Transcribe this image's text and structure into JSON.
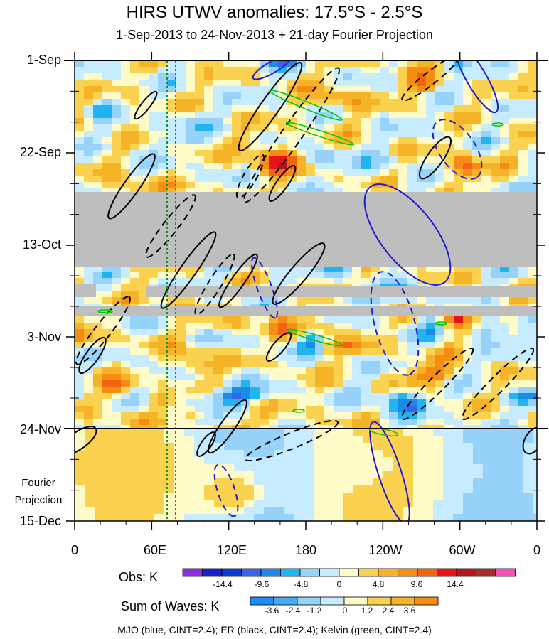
{
  "chart_data": {
    "type": "heatmap",
    "title": "HIRS UTWV anomalies: 17.5°S - 2.5°S",
    "subtitle": "1-Sep-2013 to 24-Nov-2013 + 21-day Fourier Projection",
    "y_ticks": [
      "1-Sep",
      "22-Sep",
      "13-Oct",
      "3-Nov",
      "24-Nov",
      "15-Dec"
    ],
    "x_ticks": [
      "0",
      "60E",
      "120E",
      "180",
      "120W",
      "60W",
      "0"
    ],
    "projection_label": [
      "Fourier",
      "Projection"
    ],
    "obs_colorbar": {
      "title": "Obs: K",
      "labels": [
        "-14.4",
        "-9.6",
        "-4.8",
        "0",
        "4.8",
        "9.6",
        "14.4"
      ],
      "colors": [
        "#8a2be2",
        "#1c1cc8",
        "#0a3cd2",
        "#3a64e6",
        "#1a8ce8",
        "#20b4f0",
        "#96d2fa",
        "#c8ecff",
        "#fffbc8",
        "#fad250",
        "#f5b428",
        "#f58c14",
        "#f06414",
        "#e61414",
        "#b4141e",
        "#a52d2d",
        "#f050b4"
      ]
    },
    "waves_colorbar": {
      "title": "Sum of Waves: K",
      "labels": [
        "-3.6",
        "-2.4",
        "-1.2",
        "0",
        "1.2",
        "2.4",
        "3.6"
      ],
      "colors": [
        "#1e8cff",
        "#46aaf5",
        "#96d2fa",
        "#c8ecff",
        "#fffbc8",
        "#fad250",
        "#f5b428",
        "#f58c14"
      ]
    },
    "footer": "MJO (blue, CINT=2.4); ER (black, CINT=2.4); Kelvin (green, CINT=2.4)",
    "legend": [
      {
        "name": "MJO",
        "color": "#1c1cd2"
      },
      {
        "name": "ER",
        "color": "#000000"
      },
      {
        "name": "Kelvin",
        "color": "#00c800"
      }
    ],
    "missing_color": "#bebebe"
  }
}
